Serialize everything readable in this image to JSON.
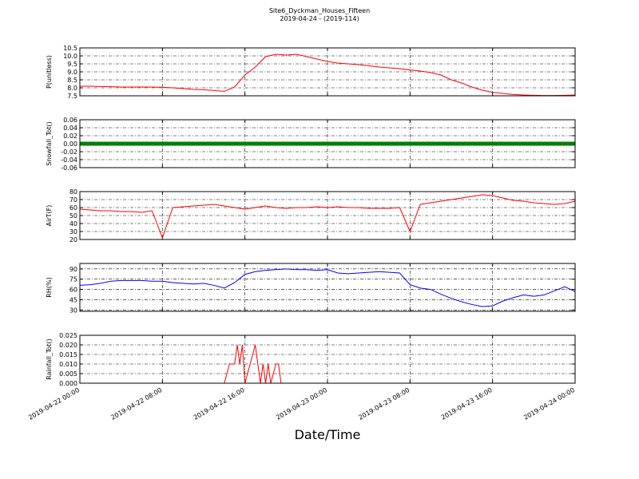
{
  "title": "Site6_Dyckman_Houses_Fifteen",
  "subtitle": "2019-04-24 - (2019-114)",
  "x_label": "Date/Time",
  "chart_data": [
    {
      "type": "line",
      "y_label": "P(unitless)",
      "grid": true,
      "ylim": [
        7.5,
        10.5
      ],
      "yticks": [
        7.5,
        {
          "value": 8,
          "label": "8.0"
        },
        8.5,
        {
          "value": 9,
          "label": "9.0"
        },
        9.5,
        {
          "value": 10,
          "label": "10.0"
        },
        10.5
      ],
      "xlim": [
        "2019-04-22 00:00",
        "2019-04-24 00:00"
      ],
      "xticks": [
        "2019-04-22 00:00",
        "2019-04-22 08:00",
        "2019-04-22 16:00",
        "2019-04-23 00:00",
        "2019-04-23 08:00",
        "2019-04-23 16:00",
        "2019-04-24 00:00"
      ],
      "x": [
        "2019-04-22 00:00",
        "2019-04-22 01:00",
        "2019-04-22 02:00",
        "2019-04-22 03:00",
        "2019-04-22 04:00",
        "2019-04-22 05:00",
        "2019-04-22 06:00",
        "2019-04-22 07:00",
        "2019-04-22 08:00",
        "2019-04-22 09:00",
        "2019-04-22 10:00",
        "2019-04-22 11:00",
        "2019-04-22 12:00",
        "2019-04-22 13:00",
        "2019-04-22 14:00",
        "2019-04-22 15:00",
        "2019-04-22 16:00",
        "2019-04-22 17:00",
        "2019-04-22 18:00",
        "2019-04-22 19:00",
        "2019-04-22 20:00",
        "2019-04-22 21:00",
        "2019-04-22 22:00",
        "2019-04-22 23:00",
        "2019-04-23 00:00",
        "2019-04-23 01:00",
        "2019-04-23 02:00",
        "2019-04-23 03:00",
        "2019-04-23 04:00",
        "2019-04-23 05:00",
        "2019-04-23 06:00",
        "2019-04-23 07:00",
        "2019-04-23 08:00",
        "2019-04-23 09:00",
        "2019-04-23 10:00",
        "2019-04-23 11:00",
        "2019-04-23 12:00",
        "2019-04-23 13:00",
        "2019-04-23 14:00",
        "2019-04-23 15:00",
        "2019-04-23 16:00",
        "2019-04-23 17:00",
        "2019-04-23 18:00",
        "2019-04-23 19:00",
        "2019-04-23 20:00",
        "2019-04-23 21:00",
        "2019-04-23 22:00",
        "2019-04-23 23:00",
        "2019-04-24 00:00"
      ],
      "series": [
        {
          "color": "#ff0000",
          "width": 1,
          "values": [
            8.1,
            8.1,
            8.08,
            8.07,
            8.05,
            8.05,
            8.05,
            8.05,
            8.03,
            8.0,
            7.95,
            7.9,
            7.88,
            7.83,
            7.78,
            8.05,
            8.8,
            9.3,
            9.95,
            10.1,
            10.05,
            10.1,
            9.95,
            9.8,
            9.65,
            9.55,
            9.5,
            9.45,
            9.38,
            9.3,
            9.25,
            9.2,
            9.12,
            9.05,
            8.95,
            8.8,
            8.5,
            8.3,
            8.05,
            7.85,
            7.72,
            7.65,
            7.58,
            7.55,
            7.53,
            7.52,
            7.52,
            7.53,
            7.55
          ]
        }
      ]
    },
    {
      "type": "line",
      "y_label": "Snowfall_Tot()",
      "grid": true,
      "ylim": [
        -0.06,
        0.06
      ],
      "yticks": [
        -0.06,
        -0.04,
        -0.02,
        {
          "value": 0,
          "label": "0.00"
        },
        0.02,
        0.04,
        0.06
      ],
      "xlim": [
        "2019-04-22 00:00",
        "2019-04-24 00:00"
      ],
      "xticks": [
        "2019-04-22 00:00",
        "2019-04-22 08:00",
        "2019-04-22 16:00",
        "2019-04-23 00:00",
        "2019-04-23 08:00",
        "2019-04-23 16:00",
        "2019-04-24 00:00"
      ],
      "x": [
        "2019-04-22 00:00",
        "2019-04-22 01:00",
        "2019-04-22 02:00",
        "2019-04-22 03:00",
        "2019-04-22 04:00",
        "2019-04-22 05:00",
        "2019-04-22 06:00",
        "2019-04-22 07:00",
        "2019-04-22 08:00",
        "2019-04-22 09:00",
        "2019-04-22 10:00",
        "2019-04-22 11:00",
        "2019-04-22 12:00",
        "2019-04-22 13:00",
        "2019-04-22 14:00",
        "2019-04-22 15:00",
        "2019-04-22 16:00",
        "2019-04-22 17:00",
        "2019-04-22 18:00",
        "2019-04-22 19:00",
        "2019-04-22 20:00",
        "2019-04-22 21:00",
        "2019-04-22 22:00",
        "2019-04-22 23:00",
        "2019-04-23 00:00",
        "2019-04-23 01:00",
        "2019-04-23 02:00",
        "2019-04-23 03:00",
        "2019-04-23 04:00",
        "2019-04-23 05:00",
        "2019-04-23 06:00",
        "2019-04-23 07:00",
        "2019-04-23 08:00",
        "2019-04-23 09:00",
        "2019-04-23 10:00",
        "2019-04-23 11:00",
        "2019-04-23 12:00",
        "2019-04-23 13:00",
        "2019-04-23 14:00",
        "2019-04-23 15:00",
        "2019-04-23 16:00",
        "2019-04-23 17:00",
        "2019-04-23 18:00",
        "2019-04-23 19:00",
        "2019-04-23 20:00",
        "2019-04-23 21:00",
        "2019-04-23 22:00",
        "2019-04-23 23:00",
        "2019-04-24 00:00"
      ],
      "series": [
        {
          "color": "#008000",
          "width": 5,
          "values": [
            0,
            0,
            0,
            0,
            0,
            0,
            0,
            0,
            0,
            0,
            0,
            0,
            0,
            0,
            0,
            0,
            0,
            0,
            0,
            0,
            0,
            0,
            0,
            0,
            0,
            0,
            0,
            0,
            0,
            0,
            0,
            0,
            0,
            0,
            0,
            0,
            0,
            0,
            0,
            0,
            0,
            0,
            0,
            0,
            0,
            0,
            0,
            0,
            0
          ]
        }
      ]
    },
    {
      "type": "line",
      "y_label": "AirT(F)",
      "grid": true,
      "ylim": [
        20,
        80
      ],
      "yticks": [
        20,
        30,
        40,
        50,
        60,
        70,
        80
      ],
      "xlim": [
        "2019-04-22 00:00",
        "2019-04-24 00:00"
      ],
      "xticks": [
        "2019-04-22 00:00",
        "2019-04-22 08:00",
        "2019-04-22 16:00",
        "2019-04-23 00:00",
        "2019-04-23 08:00",
        "2019-04-23 16:00",
        "2019-04-24 00:00"
      ],
      "x": [
        "2019-04-22 00:00",
        "2019-04-22 01:00",
        "2019-04-22 02:00",
        "2019-04-22 03:00",
        "2019-04-22 04:00",
        "2019-04-22 05:00",
        "2019-04-22 06:00",
        "2019-04-22 07:00",
        "2019-04-22 08:00",
        "2019-04-22 09:00",
        "2019-04-22 10:00",
        "2019-04-22 11:00",
        "2019-04-22 12:00",
        "2019-04-22 13:00",
        "2019-04-22 14:00",
        "2019-04-22 15:00",
        "2019-04-22 16:00",
        "2019-04-22 17:00",
        "2019-04-22 18:00",
        "2019-04-22 19:00",
        "2019-04-22 20:00",
        "2019-04-22 21:00",
        "2019-04-22 22:00",
        "2019-04-22 23:00",
        "2019-04-23 00:00",
        "2019-04-23 01:00",
        "2019-04-23 02:00",
        "2019-04-23 03:00",
        "2019-04-23 04:00",
        "2019-04-23 05:00",
        "2019-04-23 06:00",
        "2019-04-23 07:00",
        "2019-04-23 08:00",
        "2019-04-23 09:00",
        "2019-04-23 10:00",
        "2019-04-23 11:00",
        "2019-04-23 12:00",
        "2019-04-23 13:00",
        "2019-04-23 14:00",
        "2019-04-23 15:00",
        "2019-04-23 16:00",
        "2019-04-23 17:00",
        "2019-04-23 18:00",
        "2019-04-23 19:00",
        "2019-04-23 20:00",
        "2019-04-23 21:00",
        "2019-04-23 22:00",
        "2019-04-23 23:00",
        "2019-04-24 00:00"
      ],
      "series": [
        {
          "color": "#ff0000",
          "width": 1,
          "values": [
            58,
            57,
            56,
            56,
            55,
            55,
            54,
            56,
            22,
            60,
            61,
            62,
            63,
            64,
            62,
            60,
            58,
            60,
            62,
            60,
            59,
            60,
            60,
            61,
            60,
            61,
            60,
            60,
            59,
            59,
            59,
            60,
            30,
            64,
            66,
            68,
            70,
            72,
            74,
            76,
            75,
            72,
            69,
            68,
            66,
            65,
            64,
            65,
            68
          ]
        }
      ]
    },
    {
      "type": "line",
      "y_label": "RH(%)",
      "grid": true,
      "ylim": [
        28,
        98
      ],
      "yticks": [
        30,
        45,
        60,
        75,
        90
      ],
      "xlim": [
        "2019-04-22 00:00",
        "2019-04-24 00:00"
      ],
      "xticks": [
        "2019-04-22 00:00",
        "2019-04-22 08:00",
        "2019-04-22 16:00",
        "2019-04-23 00:00",
        "2019-04-23 08:00",
        "2019-04-23 16:00",
        "2019-04-24 00:00"
      ],
      "x": [
        "2019-04-22 00:00",
        "2019-04-22 01:00",
        "2019-04-22 02:00",
        "2019-04-22 03:00",
        "2019-04-22 04:00",
        "2019-04-22 05:00",
        "2019-04-22 06:00",
        "2019-04-22 07:00",
        "2019-04-22 08:00",
        "2019-04-22 09:00",
        "2019-04-22 10:00",
        "2019-04-22 11:00",
        "2019-04-22 12:00",
        "2019-04-22 13:00",
        "2019-04-22 14:00",
        "2019-04-22 15:00",
        "2019-04-22 16:00",
        "2019-04-22 17:00",
        "2019-04-22 18:00",
        "2019-04-22 19:00",
        "2019-04-22 20:00",
        "2019-04-22 21:00",
        "2019-04-22 22:00",
        "2019-04-22 23:00",
        "2019-04-23 00:00",
        "2019-04-23 01:00",
        "2019-04-23 02:00",
        "2019-04-23 03:00",
        "2019-04-23 04:00",
        "2019-04-23 05:00",
        "2019-04-23 06:00",
        "2019-04-23 07:00",
        "2019-04-23 08:00",
        "2019-04-23 09:00",
        "2019-04-23 10:00",
        "2019-04-23 11:00",
        "2019-04-23 12:00",
        "2019-04-23 13:00",
        "2019-04-23 14:00",
        "2019-04-23 15:00",
        "2019-04-23 16:00",
        "2019-04-23 17:00",
        "2019-04-23 18:00",
        "2019-04-23 19:00",
        "2019-04-23 20:00",
        "2019-04-23 21:00",
        "2019-04-23 22:00",
        "2019-04-23 23:00",
        "2019-04-24 00:00"
      ],
      "series": [
        {
          "color": "#0000ff",
          "width": 1,
          "values": [
            66,
            67,
            69,
            72,
            73,
            73,
            73,
            72,
            72,
            70,
            69,
            68,
            69,
            66,
            62,
            70,
            82,
            86,
            88,
            89,
            90,
            89,
            89,
            88,
            89,
            84,
            83,
            84,
            85,
            86,
            85,
            84,
            67,
            62,
            60,
            53,
            47,
            42,
            38,
            35,
            36,
            43,
            48,
            52,
            50,
            52,
            58,
            64,
            57
          ]
        }
      ]
    },
    {
      "type": "line",
      "y_label": "Rainfall_Tot()",
      "grid": true,
      "ylim": [
        0,
        0.025
      ],
      "yticks": [
        {
          "value": 0,
          "label": "0.000"
        },
        0.005,
        {
          "value": 0.01,
          "label": "0.010"
        },
        0.015,
        {
          "value": 0.02,
          "label": "0.020"
        },
        0.025
      ],
      "xlim": [
        "2019-04-22 00:00",
        "2019-04-24 00:00"
      ],
      "xticks": [
        "2019-04-22 00:00",
        "2019-04-22 08:00",
        "2019-04-22 16:00",
        "2019-04-23 00:00",
        "2019-04-23 08:00",
        "2019-04-23 16:00",
        "2019-04-24 00:00"
      ],
      "x": [
        "2019-04-22 00:00",
        "2019-04-22 14:00",
        "2019-04-22 14:30",
        "2019-04-22 15:00",
        "2019-04-22 15:15",
        "2019-04-22 15:30",
        "2019-04-22 15:45",
        "2019-04-22 16:00",
        "2019-04-22 16:30",
        "2019-04-22 17:00",
        "2019-04-22 17:30",
        "2019-04-22 17:45",
        "2019-04-22 18:00",
        "2019-04-22 18:15",
        "2019-04-22 18:30",
        "2019-04-22 19:00",
        "2019-04-22 19:15",
        "2019-04-22 19:30",
        "2019-04-24 00:00"
      ],
      "series": [
        {
          "color": "#ff0000",
          "width": 1,
          "values": [
            0,
            0,
            0.01,
            0.01,
            0.02,
            0.01,
            0.02,
            0,
            0.01,
            0.02,
            0,
            0.01,
            0,
            0.01,
            0,
            0.01,
            0.01,
            0,
            0
          ]
        }
      ]
    }
  ]
}
